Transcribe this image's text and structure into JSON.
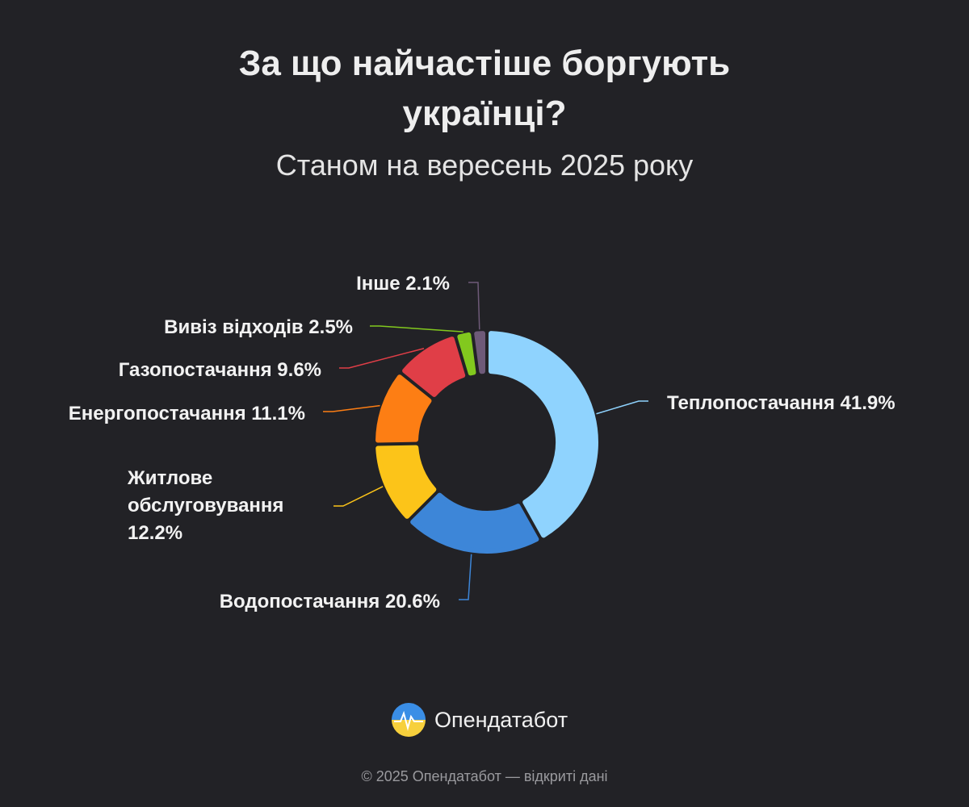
{
  "chart_data": {
    "type": "donut",
    "title": "За що найчастіше боргують українці?",
    "subtitle": "Станом на вересень 2025 року",
    "categories": [
      "Теплопостачання",
      "Водопостачання",
      "Житлове обслуговування",
      "Енергопостачання",
      "Газопостачання",
      "Вивіз відходів",
      "Інше"
    ],
    "values": [
      41.9,
      20.6,
      12.2,
      11.1,
      9.6,
      2.5,
      2.1
    ],
    "value_labels": [
      "41.9%",
      "20.6%",
      "12.2%",
      "11.1%",
      "9.6%",
      "2.5%",
      "2.1%"
    ],
    "colors": [
      "#8fd3fe",
      "#3d86d8",
      "#fcc419",
      "#fd7e14",
      "#e03e47",
      "#82c91e",
      "#6e5a78"
    ]
  },
  "brand": "Опендатабот",
  "footer": "© 2025 Опендатабот — відкриті дані"
}
